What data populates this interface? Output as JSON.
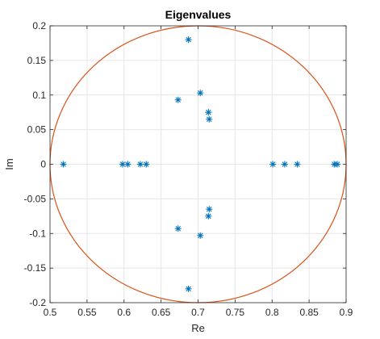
{
  "chart_data": {
    "type": "scatter",
    "title": "Eigenvalues",
    "xlabel": "Re",
    "ylabel": "Im",
    "xlim": [
      0.5,
      0.9
    ],
    "ylim": [
      -0.2,
      0.2
    ],
    "xticks": [
      0.5,
      0.55,
      0.6,
      0.65,
      0.7,
      0.75,
      0.8,
      0.85,
      0.9
    ],
    "yticks": [
      -0.2,
      -0.15,
      -0.1,
      -0.05,
      0,
      0.05,
      0.1,
      0.15,
      0.2
    ],
    "xtick_labels": [
      "0.5",
      "0.55",
      "0.6",
      "0.65",
      "0.7",
      "0.75",
      "0.8",
      "0.85",
      "0.9"
    ],
    "ytick_labels": [
      "-0.2",
      "-0.15",
      "-0.1",
      "-0.05",
      "0",
      "0.05",
      "0.1",
      "0.15",
      "0.2"
    ],
    "grid": true,
    "marker": "asterisk",
    "marker_color": "#0072BD",
    "circle": {
      "center": [
        0.7,
        0
      ],
      "radius": 0.2,
      "color": "#D95319"
    },
    "points": [
      {
        "x": 0.518,
        "y": 0.0
      },
      {
        "x": 0.598,
        "y": 0.0
      },
      {
        "x": 0.605,
        "y": 0.0
      },
      {
        "x": 0.622,
        "y": 0.0
      },
      {
        "x": 0.63,
        "y": 0.0
      },
      {
        "x": 0.801,
        "y": 0.0
      },
      {
        "x": 0.817,
        "y": 0.0
      },
      {
        "x": 0.834,
        "y": 0.0
      },
      {
        "x": 0.884,
        "y": 0.0
      },
      {
        "x": 0.888,
        "y": 0.0
      },
      {
        "x": 0.687,
        "y": 0.18
      },
      {
        "x": 0.687,
        "y": -0.18
      },
      {
        "x": 0.703,
        "y": 0.103
      },
      {
        "x": 0.703,
        "y": -0.103
      },
      {
        "x": 0.673,
        "y": 0.093
      },
      {
        "x": 0.673,
        "y": -0.093
      },
      {
        "x": 0.714,
        "y": 0.075
      },
      {
        "x": 0.714,
        "y": -0.075
      },
      {
        "x": 0.715,
        "y": 0.065
      },
      {
        "x": 0.715,
        "y": -0.065
      }
    ]
  }
}
